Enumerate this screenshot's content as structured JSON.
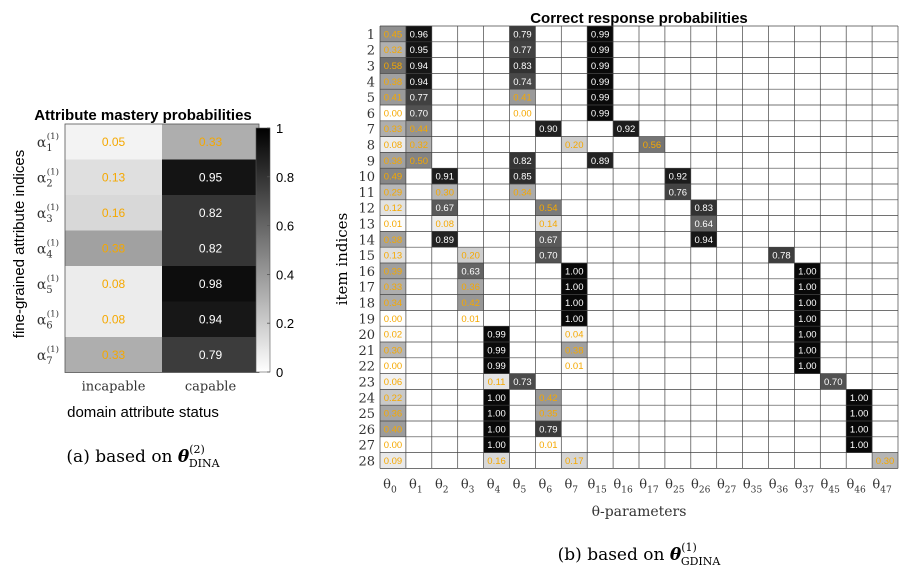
{
  "chart_data": [
    {
      "type": "heatmap",
      "title": "Attribute mastery probabilities",
      "xlabel": "domain attribute status",
      "ylabel": "fine-grained attribute indices",
      "x_tick_labels": [
        "incapable",
        "capable"
      ],
      "y_tick_labels": [
        "α1(1)",
        "α2(1)",
        "α3(1)",
        "α4(1)",
        "α5(1)",
        "α6(1)",
        "α7(1)"
      ],
      "values": [
        [
          0.05,
          0.33
        ],
        [
          0.13,
          0.95
        ],
        [
          0.16,
          0.82
        ],
        [
          0.38,
          0.82
        ],
        [
          0.08,
          0.98
        ],
        [
          0.08,
          0.94
        ],
        [
          0.33,
          0.79
        ]
      ],
      "colorbar": {
        "min": 0,
        "max": 1,
        "ticks": [
          "0",
          "0.2",
          "0.4",
          "0.6",
          "0.8",
          "1"
        ]
      },
      "colormap": "white-to-black",
      "label_colors": {
        "on_light": "#f5a800",
        "on_dark": "#ffffff"
      },
      "caption": "(a) based on θ(2)DINA"
    },
    {
      "type": "heatmap",
      "title": "Correct response probabilities",
      "xlabel": "θ-parameters",
      "ylabel": "item indices",
      "x_tick_labels": [
        "θ0",
        "θ1",
        "θ2",
        "θ3",
        "θ4",
        "θ5",
        "θ6",
        "θ7",
        "θ15",
        "θ16",
        "θ17",
        "θ25",
        "θ26",
        "θ27",
        "θ35",
        "θ36",
        "θ37",
        "θ45",
        "θ46",
        "θ47"
      ],
      "y_tick_labels": [
        "1",
        "2",
        "3",
        "4",
        "5",
        "6",
        "7",
        "8",
        "9",
        "10",
        "11",
        "12",
        "13",
        "14",
        "15",
        "16",
        "17",
        "18",
        "19",
        "20",
        "21",
        "22",
        "23",
        "24",
        "25",
        "26",
        "27",
        "28"
      ],
      "cells": [
        {
          "row": 1,
          "col": "θ0",
          "value": 0.45
        },
        {
          "row": 1,
          "col": "θ1",
          "value": 0.96
        },
        {
          "row": 1,
          "col": "θ5",
          "value": 0.79
        },
        {
          "row": 1,
          "col": "θ15",
          "value": 0.99
        },
        {
          "row": 2,
          "col": "θ0",
          "value": 0.32
        },
        {
          "row": 2,
          "col": "θ1",
          "value": 0.95
        },
        {
          "row": 2,
          "col": "θ5",
          "value": 0.77
        },
        {
          "row": 2,
          "col": "θ15",
          "value": 0.99
        },
        {
          "row": 3,
          "col": "θ0",
          "value": 0.58
        },
        {
          "row": 3,
          "col": "θ1",
          "value": 0.94
        },
        {
          "row": 3,
          "col": "θ5",
          "value": 0.83
        },
        {
          "row": 3,
          "col": "θ15",
          "value": 0.99
        },
        {
          "row": 4,
          "col": "θ0",
          "value": 0.38
        },
        {
          "row": 4,
          "col": "θ1",
          "value": 0.94
        },
        {
          "row": 4,
          "col": "θ5",
          "value": 0.74
        },
        {
          "row": 4,
          "col": "θ15",
          "value": 0.99
        },
        {
          "row": 5,
          "col": "θ0",
          "value": 0.41
        },
        {
          "row": 5,
          "col": "θ1",
          "value": 0.77
        },
        {
          "row": 5,
          "col": "θ5",
          "value": 0.41
        },
        {
          "row": 5,
          "col": "θ15",
          "value": 0.99
        },
        {
          "row": 6,
          "col": "θ0",
          "value": 0.0
        },
        {
          "row": 6,
          "col": "θ1",
          "value": 0.7
        },
        {
          "row": 6,
          "col": "θ5",
          "value": 0.0
        },
        {
          "row": 6,
          "col": "θ15",
          "value": 0.99
        },
        {
          "row": 7,
          "col": "θ0",
          "value": 0.33
        },
        {
          "row": 7,
          "col": "θ1",
          "value": 0.44
        },
        {
          "row": 7,
          "col": "θ6",
          "value": 0.9
        },
        {
          "row": 7,
          "col": "θ16",
          "value": 0.92
        },
        {
          "row": 8,
          "col": "θ0",
          "value": 0.08
        },
        {
          "row": 8,
          "col": "θ1",
          "value": 0.32
        },
        {
          "row": 8,
          "col": "θ7",
          "value": 0.2
        },
        {
          "row": 8,
          "col": "θ17",
          "value": 0.56
        },
        {
          "row": 9,
          "col": "θ0",
          "value": 0.38
        },
        {
          "row": 9,
          "col": "θ1",
          "value": 0.5
        },
        {
          "row": 9,
          "col": "θ5",
          "value": 0.82
        },
        {
          "row": 9,
          "col": "θ15",
          "value": 0.89
        },
        {
          "row": 10,
          "col": "θ0",
          "value": 0.49
        },
        {
          "row": 10,
          "col": "θ2",
          "value": 0.91
        },
        {
          "row": 10,
          "col": "θ5",
          "value": 0.85
        },
        {
          "row": 10,
          "col": "θ25",
          "value": 0.92
        },
        {
          "row": 11,
          "col": "θ0",
          "value": 0.29
        },
        {
          "row": 11,
          "col": "θ2",
          "value": 0.3
        },
        {
          "row": 11,
          "col": "θ5",
          "value": 0.34
        },
        {
          "row": 11,
          "col": "θ25",
          "value": 0.76
        },
        {
          "row": 12,
          "col": "θ0",
          "value": 0.12
        },
        {
          "row": 12,
          "col": "θ2",
          "value": 0.67
        },
        {
          "row": 12,
          "col": "θ6",
          "value": 0.54
        },
        {
          "row": 12,
          "col": "θ26",
          "value": 0.83
        },
        {
          "row": 13,
          "col": "θ0",
          "value": 0.01
        },
        {
          "row": 13,
          "col": "θ2",
          "value": 0.08
        },
        {
          "row": 13,
          "col": "θ6",
          "value": 0.14
        },
        {
          "row": 13,
          "col": "θ26",
          "value": 0.64
        },
        {
          "row": 14,
          "col": "θ0",
          "value": 0.38
        },
        {
          "row": 14,
          "col": "θ2",
          "value": 0.89
        },
        {
          "row": 14,
          "col": "θ6",
          "value": 0.67
        },
        {
          "row": 14,
          "col": "θ26",
          "value": 0.94
        },
        {
          "row": 15,
          "col": "θ0",
          "value": 0.13
        },
        {
          "row": 15,
          "col": "θ3",
          "value": 0.2
        },
        {
          "row": 15,
          "col": "θ6",
          "value": 0.7
        },
        {
          "row": 15,
          "col": "θ36",
          "value": 0.78
        },
        {
          "row": 16,
          "col": "θ0",
          "value": 0.39
        },
        {
          "row": 16,
          "col": "θ3",
          "value": 0.63
        },
        {
          "row": 16,
          "col": "θ7",
          "value": 1.0
        },
        {
          "row": 16,
          "col": "θ37",
          "value": 1.0
        },
        {
          "row": 17,
          "col": "θ0",
          "value": 0.33
        },
        {
          "row": 17,
          "col": "θ3",
          "value": 0.36
        },
        {
          "row": 17,
          "col": "θ7",
          "value": 1.0
        },
        {
          "row": 17,
          "col": "θ37",
          "value": 1.0
        },
        {
          "row": 18,
          "col": "θ0",
          "value": 0.34
        },
        {
          "row": 18,
          "col": "θ3",
          "value": 0.42
        },
        {
          "row": 18,
          "col": "θ7",
          "value": 1.0
        },
        {
          "row": 18,
          "col": "θ37",
          "value": 1.0
        },
        {
          "row": 19,
          "col": "θ0",
          "value": 0.0
        },
        {
          "row": 19,
          "col": "θ3",
          "value": 0.01
        },
        {
          "row": 19,
          "col": "θ7",
          "value": 1.0
        },
        {
          "row": 19,
          "col": "θ37",
          "value": 1.0
        },
        {
          "row": 20,
          "col": "θ0",
          "value": 0.02
        },
        {
          "row": 20,
          "col": "θ4",
          "value": 0.99
        },
        {
          "row": 20,
          "col": "θ7",
          "value": 0.04
        },
        {
          "row": 20,
          "col": "θ37",
          "value": 1.0
        },
        {
          "row": 21,
          "col": "θ0",
          "value": 0.3
        },
        {
          "row": 21,
          "col": "θ4",
          "value": 0.99
        },
        {
          "row": 21,
          "col": "θ7",
          "value": 0.38
        },
        {
          "row": 21,
          "col": "θ37",
          "value": 1.0
        },
        {
          "row": 22,
          "col": "θ0",
          "value": 0.0
        },
        {
          "row": 22,
          "col": "θ4",
          "value": 0.99
        },
        {
          "row": 22,
          "col": "θ7",
          "value": 0.01
        },
        {
          "row": 22,
          "col": "θ37",
          "value": 1.0
        },
        {
          "row": 23,
          "col": "θ0",
          "value": 0.06
        },
        {
          "row": 23,
          "col": "θ4",
          "value": 0.11
        },
        {
          "row": 23,
          "col": "θ5",
          "value": 0.73
        },
        {
          "row": 23,
          "col": "θ45",
          "value": 0.7
        },
        {
          "row": 24,
          "col": "θ0",
          "value": 0.22
        },
        {
          "row": 24,
          "col": "θ4",
          "value": 1.0
        },
        {
          "row": 24,
          "col": "θ6",
          "value": 0.42
        },
        {
          "row": 24,
          "col": "θ46",
          "value": 1.0
        },
        {
          "row": 25,
          "col": "θ0",
          "value": 0.36
        },
        {
          "row": 25,
          "col": "θ4",
          "value": 1.0
        },
        {
          "row": 25,
          "col": "θ6",
          "value": 0.35
        },
        {
          "row": 25,
          "col": "θ46",
          "value": 1.0
        },
        {
          "row": 26,
          "col": "θ0",
          "value": 0.4
        },
        {
          "row": 26,
          "col": "θ4",
          "value": 1.0
        },
        {
          "row": 26,
          "col": "θ6",
          "value": 0.79
        },
        {
          "row": 26,
          "col": "θ46",
          "value": 1.0
        },
        {
          "row": 27,
          "col": "θ0",
          "value": 0.0
        },
        {
          "row": 27,
          "col": "θ4",
          "value": 1.0
        },
        {
          "row": 27,
          "col": "θ6",
          "value": 0.01
        },
        {
          "row": 27,
          "col": "θ46",
          "value": 1.0
        },
        {
          "row": 28,
          "col": "θ0",
          "value": 0.09
        },
        {
          "row": 28,
          "col": "θ4",
          "value": 0.16
        },
        {
          "row": 28,
          "col": "θ7",
          "value": 0.17
        },
        {
          "row": 28,
          "col": "θ47",
          "value": 0.3
        }
      ],
      "colormap": "white-to-black",
      "label_colors": {
        "on_light": "#f5a800",
        "on_dark": "#ffffff"
      },
      "caption": "(b) based on θ(1)GDINA"
    }
  ]
}
